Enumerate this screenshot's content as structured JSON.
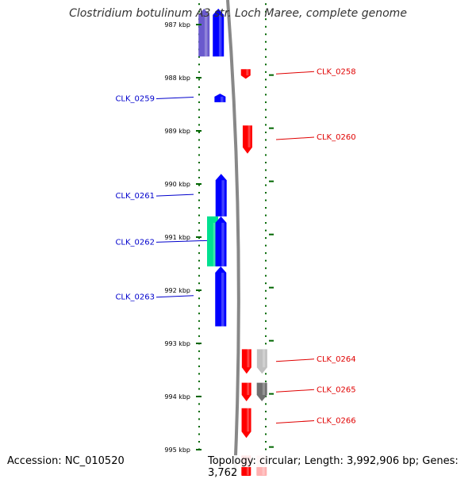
{
  "title": "Clostridium botulinum A3 str. Loch Maree, complete genome",
  "accession": "Accession: NC_010520",
  "summary": "Topology: circular; Length: 3,992,906 bp; Genes: 3,762",
  "colors": {
    "forward_cds": "#ff0000",
    "reverse_cds": "#0000ff",
    "rrna": "#00e090",
    "other_gene": "#a0a0a0",
    "ticks": "#006600",
    "backbone": "#808080"
  },
  "ruler": [
    {
      "label": "987 kbp",
      "kb": 987
    },
    {
      "label": "988 kbp",
      "kb": 988
    },
    {
      "label": "989 kbp",
      "kb": 989
    },
    {
      "label": "990 kbp",
      "kb": 990
    },
    {
      "label": "991 kbp",
      "kb": 991
    },
    {
      "label": "992 kbp",
      "kb": 992
    },
    {
      "label": "993 kbp",
      "kb": 993
    },
    {
      "label": "994 kbp",
      "kb": 994
    },
    {
      "label": "995 kbp",
      "kb": 995
    }
  ],
  "features": [
    {
      "strand": "reverse",
      "track": "outer",
      "type": "cds",
      "start": 986.7,
      "end": 987.6,
      "color": "#0000ff"
    },
    {
      "strand": "reverse",
      "track": "inner",
      "type": "cds",
      "start": 986.7,
      "end": 987.6,
      "color": "#6a5acd"
    },
    {
      "strand": "forward",
      "track": "outer",
      "type": "cds",
      "start": 987.84,
      "end": 988.02,
      "label": "CLK_0258",
      "color": "#ff0000"
    },
    {
      "strand": "reverse",
      "track": "outer",
      "type": "cds",
      "start": 988.3,
      "end": 988.46,
      "label": "CLK_0259",
      "color": "#0000ff"
    },
    {
      "strand": "forward",
      "track": "outer",
      "type": "cds",
      "start": 988.9,
      "end": 989.43,
      "label": "CLK_0260",
      "color": "#ff0000"
    },
    {
      "strand": "reverse",
      "track": "outer",
      "type": "cds",
      "start": 989.81,
      "end": 990.61,
      "label": "CLK_0261",
      "color": "#0000ff"
    },
    {
      "strand": "reverse",
      "track": "inner",
      "type": "rrna",
      "start": 990.61,
      "end": 991.55,
      "label": "CLK_0262",
      "color": "#00e090"
    },
    {
      "strand": "reverse",
      "track": "outer",
      "type": "cds",
      "start": 990.61,
      "end": 991.55,
      "color": "#0000ff"
    },
    {
      "strand": "reverse",
      "track": "outer",
      "type": "cds",
      "start": 991.55,
      "end": 992.68,
      "label": "CLK_0263",
      "color": "#0000ff"
    },
    {
      "strand": "forward",
      "track": "outer",
      "type": "cds",
      "start": 993.11,
      "end": 993.57,
      "label": "CLK_0264",
      "color": "#ff0000"
    },
    {
      "strand": "forward",
      "track": "inner",
      "type": "gene",
      "start": 993.11,
      "end": 993.57,
      "color": "#c0c0c0"
    },
    {
      "strand": "forward",
      "track": "outer",
      "type": "cds",
      "start": 993.74,
      "end": 994.09,
      "label": "CLK_0265",
      "color": "#ff0000"
    },
    {
      "strand": "forward",
      "track": "inner",
      "type": "gene",
      "start": 993.74,
      "end": 994.09,
      "color": "#707070"
    },
    {
      "strand": "forward",
      "track": "outer",
      "type": "cds",
      "start": 994.22,
      "end": 994.78,
      "label": "CLK_0266",
      "color": "#ff0000"
    },
    {
      "strand": "forward",
      "track": "outer",
      "type": "cds",
      "start": 995.11,
      "end": 995.6,
      "color": "#ff0000"
    },
    {
      "strand": "forward",
      "track": "inner",
      "type": "gene",
      "start": 995.11,
      "end": 995.6,
      "color": "#ffb0b0"
    }
  ]
}
